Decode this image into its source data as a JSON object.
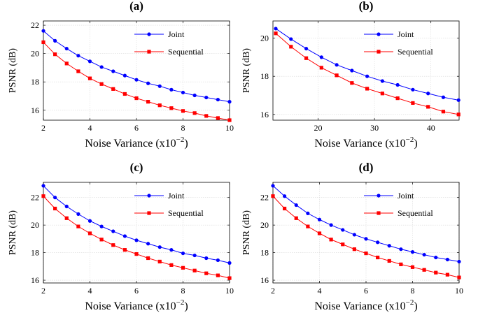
{
  "chart_data": [
    {
      "panel": "a",
      "type": "line",
      "title": "(a)",
      "xlabel": "Noise Variance (x10",
      "xlabel_exponent": "−2",
      "xlabel_suffix": ")",
      "ylabel": "PSNR (dB)",
      "xlim": [
        2,
        10
      ],
      "ylim": [
        15.3,
        22.3
      ],
      "xticks": [
        2,
        4,
        6,
        8,
        10
      ],
      "yticks": [
        16,
        18,
        20,
        22
      ],
      "grid": true,
      "legend": "top-right",
      "x": [
        2.0,
        2.5,
        3.0,
        3.5,
        4.0,
        4.5,
        5.0,
        5.5,
        6.0,
        6.5,
        7.0,
        7.5,
        8.0,
        8.5,
        9.0,
        9.5,
        10.0
      ],
      "series": [
        {
          "name": "Joint",
          "color": "#0000ff",
          "marker": "circle",
          "values": [
            21.6,
            20.9,
            20.35,
            19.85,
            19.45,
            19.05,
            18.75,
            18.45,
            18.15,
            17.9,
            17.7,
            17.45,
            17.25,
            17.05,
            16.9,
            16.75,
            16.6
          ]
        },
        {
          "name": "Sequential",
          "color": "#ff0000",
          "marker": "square",
          "values": [
            20.8,
            19.95,
            19.3,
            18.75,
            18.25,
            17.85,
            17.5,
            17.15,
            16.85,
            16.6,
            16.35,
            16.15,
            15.95,
            15.8,
            15.6,
            15.45,
            15.3
          ]
        }
      ]
    },
    {
      "panel": "b",
      "type": "line",
      "title": "(b)",
      "xlabel": "Noise Variance (x10",
      "xlabel_exponent": "−2",
      "xlabel_suffix": ")",
      "ylabel": "PSNR (dB)",
      "xlim": [
        12,
        45
      ],
      "ylim": [
        15.7,
        20.9
      ],
      "xticks": [
        20,
        30,
        40
      ],
      "yticks": [
        16,
        18,
        20
      ],
      "grid": true,
      "legend": "top-right",
      "x": [
        12.5,
        15.2,
        17.9,
        20.6,
        23.3,
        26.0,
        28.7,
        31.4,
        34.1,
        36.8,
        39.5,
        42.2,
        44.9
      ],
      "series": [
        {
          "name": "Joint",
          "color": "#0000ff",
          "marker": "circle",
          "values": [
            20.5,
            19.95,
            19.45,
            19.0,
            18.6,
            18.3,
            18.0,
            17.75,
            17.55,
            17.3,
            17.1,
            16.9,
            16.75
          ]
        },
        {
          "name": "Sequential",
          "color": "#ff0000",
          "marker": "square",
          "values": [
            20.25,
            19.55,
            18.95,
            18.45,
            18.05,
            17.65,
            17.35,
            17.1,
            16.85,
            16.6,
            16.4,
            16.15,
            16.0
          ]
        }
      ]
    },
    {
      "panel": "c",
      "type": "line",
      "title": "(c)",
      "xlabel": "Noise Variance (x10",
      "xlabel_exponent": "−2",
      "xlabel_suffix": ")",
      "ylabel": "PSNR (dB)",
      "xlim": [
        2,
        10
      ],
      "ylim": [
        15.8,
        23.1
      ],
      "xticks": [
        2,
        4,
        6,
        8,
        10
      ],
      "yticks": [
        16,
        18,
        20,
        22
      ],
      "grid": true,
      "legend": "top-right",
      "x": [
        2.0,
        2.5,
        3.0,
        3.5,
        4.0,
        4.5,
        5.0,
        5.5,
        6.0,
        6.5,
        7.0,
        7.5,
        8.0,
        8.5,
        9.0,
        9.5,
        10.0
      ],
      "series": [
        {
          "name": "Joint",
          "color": "#0000ff",
          "marker": "circle",
          "values": [
            22.85,
            22.0,
            21.35,
            20.8,
            20.3,
            19.9,
            19.55,
            19.2,
            18.9,
            18.65,
            18.4,
            18.2,
            17.95,
            17.8,
            17.6,
            17.45,
            17.25
          ]
        },
        {
          "name": "Sequential",
          "color": "#ff0000",
          "marker": "square",
          "values": [
            22.1,
            21.2,
            20.5,
            19.9,
            19.4,
            18.95,
            18.55,
            18.2,
            17.9,
            17.6,
            17.35,
            17.1,
            16.9,
            16.7,
            16.5,
            16.35,
            16.15
          ]
        }
      ]
    },
    {
      "panel": "d",
      "type": "line",
      "title": "(d)",
      "xlabel": "Noise Variance (x10",
      "xlabel_exponent": "−2",
      "xlabel_suffix": ")",
      "ylabel": "PSNR (dB)",
      "xlim": [
        2,
        10
      ],
      "ylim": [
        15.8,
        23.1
      ],
      "xticks": [
        2,
        4,
        6,
        8,
        10
      ],
      "yticks": [
        16,
        18,
        20,
        22
      ],
      "grid": true,
      "legend": "top-right",
      "x": [
        2.0,
        2.5,
        3.0,
        3.5,
        4.0,
        4.5,
        5.0,
        5.5,
        6.0,
        6.5,
        7.0,
        7.5,
        8.0,
        8.5,
        9.0,
        9.5,
        10.0
      ],
      "series": [
        {
          "name": "Joint",
          "color": "#0000ff",
          "marker": "circle",
          "values": [
            22.85,
            22.1,
            21.45,
            20.85,
            20.4,
            20.0,
            19.65,
            19.3,
            19.0,
            18.75,
            18.5,
            18.25,
            18.05,
            17.85,
            17.65,
            17.5,
            17.35
          ]
        },
        {
          "name": "Sequential",
          "color": "#ff0000",
          "marker": "square",
          "values": [
            22.1,
            21.2,
            20.5,
            19.9,
            19.4,
            18.95,
            18.6,
            18.25,
            17.95,
            17.65,
            17.4,
            17.15,
            16.95,
            16.75,
            16.55,
            16.4,
            16.2
          ]
        }
      ]
    }
  ]
}
